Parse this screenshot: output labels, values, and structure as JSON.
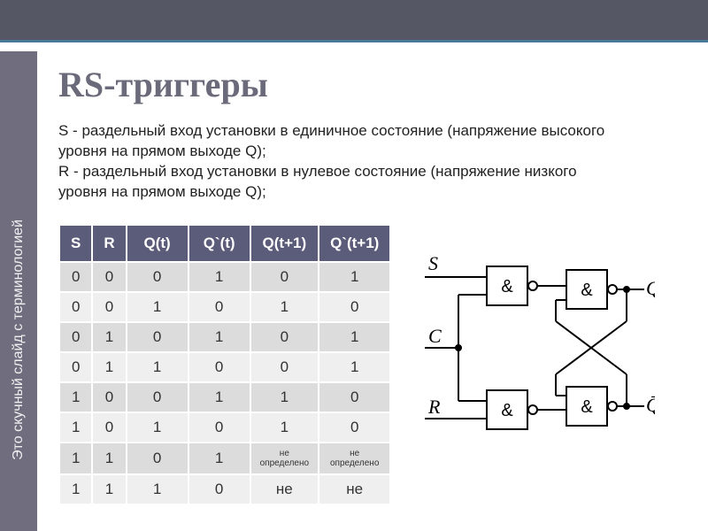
{
  "sidebar_text": "Это скучный слайд с терминологией",
  "title": "RS-триггеры",
  "description": "S - раздельный вход установки в единичное состояние (напряжение высокого уровня на прямом выходе Q);\nR - раздельный вход установки в нулевое состояние (напряжение низкого уровня на прямом выходе Q);",
  "table": {
    "header_bg": "#5b5b7a",
    "header_fg": "#ffffff",
    "row_bg_even": "#dcdcdc",
    "row_bg_odd": "#efefef",
    "columns": [
      "S",
      "R",
      "Q(t)",
      "Q`(t)",
      "Q(t+1)",
      "Q`(t+1)"
    ],
    "rows": [
      [
        "0",
        "0",
        "0",
        "1",
        "0",
        "1"
      ],
      [
        "0",
        "0",
        "1",
        "0",
        "1",
        "0"
      ],
      [
        "0",
        "1",
        "0",
        "1",
        "0",
        "1"
      ],
      [
        "0",
        "1",
        "1",
        "0",
        "0",
        "1"
      ],
      [
        "1",
        "0",
        "0",
        "1",
        "1",
        "0"
      ],
      [
        "1",
        "0",
        "1",
        "0",
        "1",
        "0"
      ],
      [
        "1",
        "1",
        "0",
        "1",
        "не определено",
        "не определено"
      ],
      [
        "1",
        "1",
        "1",
        "0",
        "не",
        "не"
      ]
    ]
  },
  "diagram": {
    "inputs": [
      "S",
      "C",
      "R"
    ],
    "outputs": [
      "Q",
      "Q̄"
    ],
    "gate_label": "&",
    "stroke": "#000000",
    "stroke_width": 2,
    "font_family": "Times New Roman, serif",
    "font_size_labels": 22
  }
}
